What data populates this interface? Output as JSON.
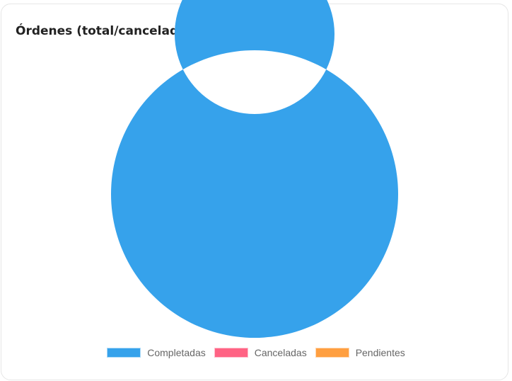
{
  "chart_data": {
    "type": "doughnut",
    "title": "Órdenes (total/canceladas/pendientes)",
    "categories": [
      "Completadas",
      "Canceladas",
      "Pendientes"
    ],
    "values": [
      1,
      0,
      0
    ],
    "colors": [
      "#36a2eb",
      "#ff6384",
      "#ff9f40"
    ],
    "legend_position": "bottom"
  }
}
